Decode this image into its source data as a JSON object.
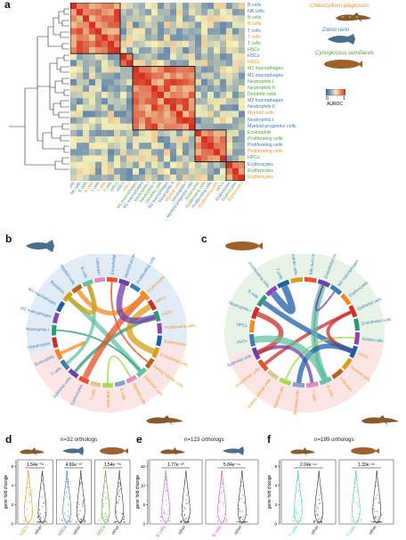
{
  "colors": {
    "shark": "#E8932A",
    "zebrafish": "#3E7CB1",
    "tongue_sole": "#4FA23A",
    "heat_low": "#2E5FA8",
    "heat_mid": "#F4EFB8",
    "heat_high": "#D7301F",
    "b_violin": "#C65BCF",
    "t_violin": "#49D39A"
  },
  "panel_labels": {
    "a": "a",
    "b": "b",
    "c": "c",
    "d": "d",
    "e": "e",
    "f": "f"
  },
  "legend": {
    "species": [
      "Chiloscyllium plagiosum",
      "Danio rerio",
      "Cynoglossus semilaevis"
    ],
    "auroc_title": "AUROC",
    "auroc_min": "0",
    "auroc_max": "1"
  },
  "heatmap": {
    "row_labels": [
      {
        "t": "B cells",
        "s": "z"
      },
      {
        "t": "NK cells",
        "s": "z"
      },
      {
        "t": "B cells",
        "s": "t"
      },
      {
        "t": "B cells",
        "s": "s"
      },
      {
        "t": "T cells",
        "s": "z"
      },
      {
        "t": "T cells",
        "s": "s"
      },
      {
        "t": "T cells",
        "s": "t"
      },
      {
        "t": "HSCs",
        "s": "t"
      },
      {
        "t": "HSCs",
        "s": "z"
      },
      {
        "t": "HSCs",
        "s": "s"
      },
      {
        "t": "M1 macrophages",
        "s": "t"
      },
      {
        "t": "M1 macrophages",
        "s": "z"
      },
      {
        "t": "Neutrophils-I",
        "s": "t"
      },
      {
        "t": "Neutrophils-II",
        "s": "t"
      },
      {
        "t": "Dendritic cells",
        "s": "t"
      },
      {
        "t": "M2 macrophages",
        "s": "z"
      },
      {
        "t": "Neutrophils-II",
        "s": "z"
      },
      {
        "t": "Myeloid cells",
        "s": "s"
      },
      {
        "t": "Neutrophils-I",
        "s": "z"
      },
      {
        "t": "Myeloid progenitor cells",
        "s": "z"
      },
      {
        "t": "Eosinophils",
        "s": "t"
      },
      {
        "t": "Proliferating cells",
        "s": "t"
      },
      {
        "t": "Proliferating cells",
        "s": "z"
      },
      {
        "t": "Proliferating cells",
        "s": "s"
      },
      {
        "t": "HPCs",
        "s": "t"
      },
      {
        "t": "Erythrocytes",
        "s": "z"
      },
      {
        "t": "Erythrocytes",
        "s": "t"
      },
      {
        "t": "Erythrocytes",
        "s": "s"
      }
    ],
    "blocks": [
      [
        0,
        7
      ],
      [
        8,
        9
      ],
      [
        10,
        19
      ],
      [
        20,
        24
      ],
      [
        25,
        27
      ]
    ]
  },
  "panel_b": {
    "outer_left": [
      "Erythrocytes",
      "Epithelial cells",
      "T cells",
      "Eosinophils",
      "Hepatocytes",
      "Neutrophils-I",
      "M2 macrophages",
      "M1 macrophages",
      "Basophils",
      "Myeloid cells",
      "B cells",
      "Unknown"
    ],
    "outer_right": [
      "Endothelial cells",
      "Myeloid progenitor cells",
      "Proliferating cells"
    ],
    "inner": [
      "Erythrocytes",
      "HPCs",
      "HSCs",
      "Proliferating cells",
      "Erythrocytes",
      "Endothelial cells",
      "Kidney tubular cells",
      "Epithelial cells",
      "Myeloid cells",
      "B cells",
      "Unknown",
      "T cells"
    ]
  },
  "panel_c": {
    "outer_left": [
      "Epithelial cells",
      "HSCs",
      "HPCs",
      "Neutrophils-I",
      "B cells",
      "Proliferating cells",
      "T cells",
      "Dendritic cells"
    ],
    "outer_right": [
      "Bile duct cells",
      "Endothelial cells",
      "M2 macrophages",
      "Erythrocytes",
      "Epithelial cells",
      "Endothelial cells",
      "Goblet cells"
    ],
    "inner": [
      "HSCs",
      "Myeloid cells",
      "Unknown",
      "B cells",
      "T cells",
      "Proliferating cells",
      "Myeloid cells",
      "Kidney tubular cells",
      "Endothelial cells"
    ]
  },
  "panel_d": {
    "title": "n=32 orthologs",
    "ylabel": "gene fold change",
    "pvalues": [
      "1.54e⁻⁰⁸",
      "4.66e⁻¹⁰",
      "1.54e⁻⁰⁸"
    ],
    "xlabels": [
      "HSCs",
      "other",
      "HSCs",
      "other",
      "HSCs",
      "other"
    ],
    "yticks": [
      "0",
      "2",
      "4",
      "6"
    ]
  },
  "panel_e": {
    "title": "n=123 orthologs",
    "ylabel": "gene fold change",
    "pvalues": [
      "1.77e⁻²⁰",
      "5.84e⁻¹⁹"
    ],
    "xlabels": [
      "B cells",
      "other",
      "B cells",
      "other"
    ],
    "yticks": [
      "0",
      "5",
      "10",
      "15"
    ]
  },
  "panel_f": {
    "title": "n=199 orthologs",
    "ylabel": "gene fold change",
    "pvalues": [
      "2.04e⁻¹⁹",
      "1.33e⁻²⁸"
    ],
    "xlabels": [
      "T cells",
      "other",
      "T cells",
      "other"
    ],
    "yticks": [
      "0",
      "2",
      "4",
      "6"
    ]
  }
}
